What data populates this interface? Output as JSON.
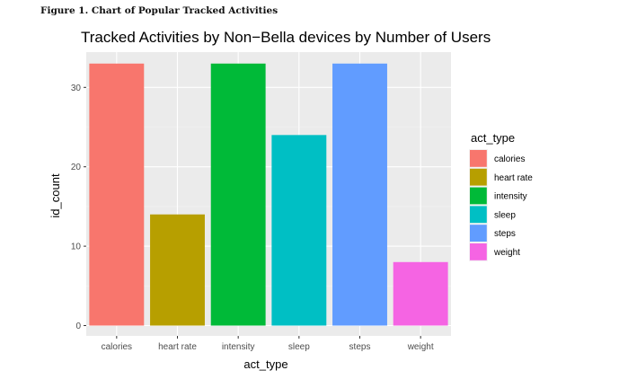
{
  "figure_caption": "Figure 1. Chart of Popular Tracked Activities",
  "chart_data": {
    "type": "bar",
    "title": "Tracked Activities by Non−Bella devices by Number of Users",
    "xlabel": "act_type",
    "ylabel": "id_count",
    "categories": [
      "calories",
      "heart rate",
      "intensity",
      "sleep",
      "steps",
      "weight"
    ],
    "values": [
      33,
      14,
      33,
      24,
      33,
      8
    ],
    "ylim": [
      0,
      33
    ],
    "yticks": [
      "0",
      "10",
      "20",
      "30"
    ],
    "colors": [
      "#F8766D",
      "#B79F00",
      "#00BA38",
      "#00BFC4",
      "#619CFF",
      "#F564E3"
    ],
    "legend": {
      "title": "act_type",
      "placement": "right",
      "entries": [
        "calories",
        "heart rate",
        "intensity",
        "sleep",
        "steps",
        "weight"
      ]
    },
    "grid": true,
    "panel_background": "#EBEBEB"
  }
}
